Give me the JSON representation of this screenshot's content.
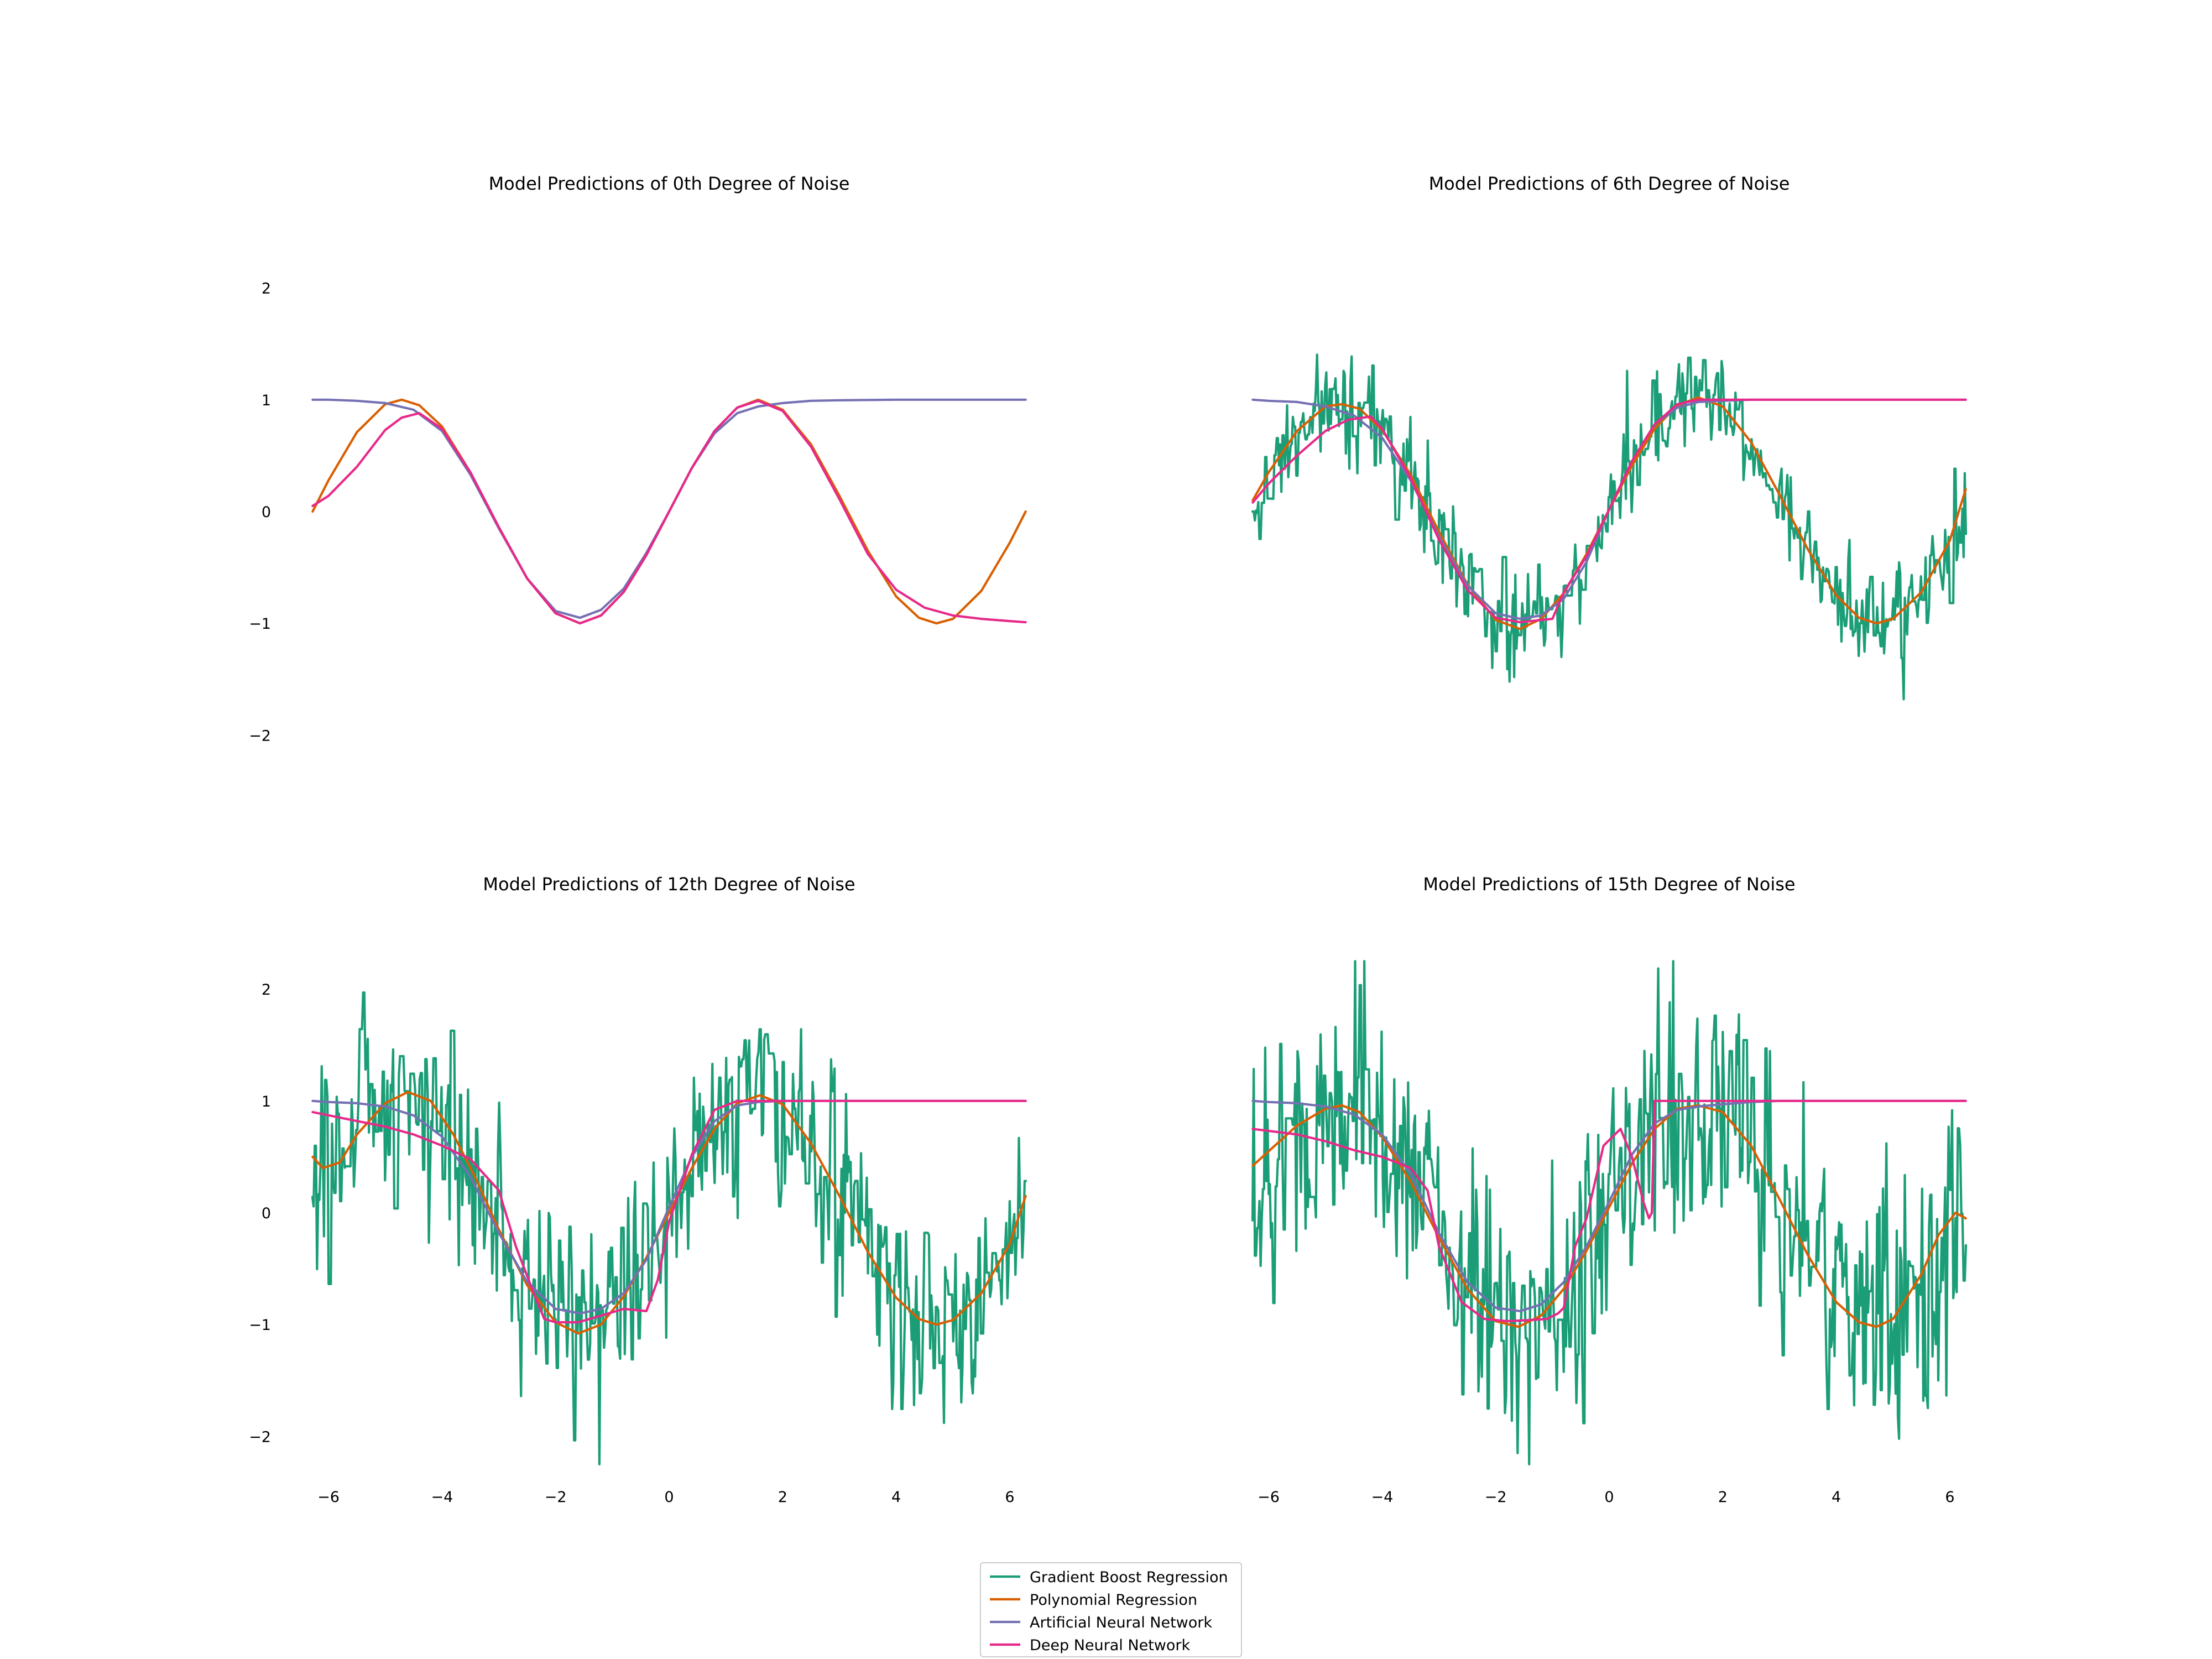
{
  "colors": {
    "gradient_boost": "#1b9e77",
    "polynomial": "#d95f02",
    "ann": "#7570b3",
    "dnn": "#e7298a"
  },
  "legend": {
    "placement": "bottom-center",
    "entries": [
      "Gradient Boost Regression",
      "Polynomial Regression",
      "Artificial Neural Network",
      "Deep Neural Network"
    ]
  },
  "chart_data": [
    {
      "type": "line",
      "title": "Model Predictions of 0th Degree of Noise",
      "noise_degree": 0,
      "xlim": [
        -6.283,
        6.283
      ],
      "ylim": [
        -2.3,
        2.3
      ],
      "yticks": [
        -2,
        -1,
        0,
        1,
        2
      ],
      "xticks": [],
      "show_yticks": true,
      "series": [
        {
          "name": "Polynomial Regression",
          "x": [
            -6.28,
            -6.0,
            -5.5,
            -5.0,
            -4.71,
            -4.4,
            -4.0,
            -3.5,
            -3.0,
            -2.5,
            -2.0,
            -1.57,
            -1.2,
            -0.8,
            -0.4,
            0.0,
            0.4,
            0.8,
            1.2,
            1.57,
            2.0,
            2.5,
            3.0,
            3.5,
            4.0,
            4.4,
            4.71,
            5.0,
            5.5,
            6.0,
            6.28
          ],
          "y": [
            0.0,
            0.28,
            0.71,
            0.96,
            1.0,
            0.95,
            0.76,
            0.35,
            -0.14,
            -0.6,
            -0.91,
            -1.0,
            -0.93,
            -0.72,
            -0.39,
            0.0,
            0.39,
            0.72,
            0.93,
            1.0,
            0.91,
            0.6,
            0.14,
            -0.35,
            -0.76,
            -0.95,
            -1.0,
            -0.96,
            -0.71,
            -0.28,
            0.0
          ]
        },
        {
          "name": "Artificial Neural Network",
          "x": [
            -6.28,
            -6.0,
            -5.5,
            -5.0,
            -4.5,
            -4.0,
            -3.5,
            -3.0,
            -2.5,
            -2.0,
            -1.57,
            -1.2,
            -0.8,
            -0.4,
            0.0,
            0.4,
            0.8,
            1.2,
            1.57,
            2.0,
            2.5,
            3.0,
            4.0,
            5.0,
            6.28
          ],
          "y": [
            1.0,
            1.0,
            0.99,
            0.97,
            0.91,
            0.72,
            0.33,
            -0.15,
            -0.6,
            -0.89,
            -0.95,
            -0.88,
            -0.69,
            -0.37,
            0.0,
            0.39,
            0.7,
            0.88,
            0.94,
            0.97,
            0.99,
            0.995,
            1.0,
            1.0,
            1.0
          ]
        },
        {
          "name": "Deep Neural Network",
          "x": [
            -6.28,
            -6.0,
            -5.5,
            -5.0,
            -4.71,
            -4.4,
            -4.0,
            -3.5,
            -3.0,
            -2.5,
            -2.0,
            -1.57,
            -1.2,
            -0.8,
            -0.4,
            0.0,
            0.4,
            0.8,
            1.2,
            1.57,
            2.0,
            2.5,
            3.0,
            3.5,
            4.0,
            4.5,
            5.0,
            5.5,
            6.0,
            6.28
          ],
          "y": [
            0.05,
            0.14,
            0.4,
            0.73,
            0.84,
            0.88,
            0.74,
            0.35,
            -0.14,
            -0.6,
            -0.91,
            -1.0,
            -0.93,
            -0.72,
            -0.39,
            0.0,
            0.39,
            0.72,
            0.93,
            0.99,
            0.9,
            0.58,
            0.11,
            -0.38,
            -0.7,
            -0.86,
            -0.93,
            -0.96,
            -0.98,
            -0.99
          ]
        }
      ]
    },
    {
      "type": "line",
      "title": "Model Predictions of 6th Degree of Noise",
      "noise_degree": 6,
      "xlim": [
        -6.283,
        6.283
      ],
      "ylim": [
        -2.3,
        2.3
      ],
      "yticks": [],
      "xticks": [],
      "show_yticks": false,
      "series": [
        {
          "name": "Polynomial Regression",
          "x": [
            -6.28,
            -6.0,
            -5.5,
            -5.0,
            -4.71,
            -4.4,
            -4.0,
            -3.5,
            -3.0,
            -2.5,
            -2.0,
            -1.57,
            -1.2,
            -0.8,
            -0.4,
            0.0,
            0.4,
            0.8,
            1.2,
            1.57,
            2.0,
            2.5,
            3.0,
            3.5,
            4.0,
            4.4,
            4.71,
            5.0,
            5.5,
            6.0,
            6.28
          ],
          "y": [
            0.1,
            0.35,
            0.72,
            0.94,
            0.96,
            0.92,
            0.73,
            0.33,
            -0.18,
            -0.65,
            -0.97,
            -1.05,
            -0.96,
            -0.73,
            -0.38,
            0.02,
            0.41,
            0.74,
            0.95,
            1.02,
            0.94,
            0.62,
            0.15,
            -0.34,
            -0.75,
            -0.95,
            -1.0,
            -0.96,
            -0.72,
            -0.26,
            0.2
          ]
        },
        {
          "name": "Artificial Neural Network",
          "x": [
            -6.28,
            -6.0,
            -5.5,
            -5.0,
            -4.5,
            -4.0,
            -3.5,
            -3.0,
            -2.5,
            -2.0,
            -1.57,
            -1.2,
            -0.8,
            -0.4,
            0.0,
            0.4,
            0.8,
            1.2,
            1.57,
            2.0,
            2.5,
            3.0,
            4.0,
            5.0,
            6.28
          ],
          "y": [
            1.0,
            0.99,
            0.98,
            0.94,
            0.86,
            0.66,
            0.28,
            -0.22,
            -0.66,
            -0.91,
            -0.96,
            -0.93,
            -0.78,
            -0.45,
            0.02,
            0.45,
            0.78,
            0.93,
            0.98,
            0.99,
            1.0,
            1.0,
            1.0,
            1.0,
            1.0
          ]
        },
        {
          "name": "Deep Neural Network",
          "x": [
            -6.28,
            -6.0,
            -5.5,
            -5.0,
            -4.6,
            -4.2,
            -4.0,
            -3.5,
            -3.0,
            -2.5,
            -2.0,
            -1.57,
            -1.2,
            -1.0,
            -0.8,
            -0.4,
            0.0,
            0.4,
            0.8,
            1.2,
            1.57,
            2.0,
            2.5,
            3.0,
            4.0,
            5.0,
            6.28
          ],
          "y": [
            0.08,
            0.25,
            0.5,
            0.72,
            0.82,
            0.85,
            0.74,
            0.3,
            -0.25,
            -0.7,
            -0.95,
            -0.99,
            -0.97,
            -0.96,
            -0.72,
            -0.4,
            0.02,
            0.45,
            0.78,
            0.96,
            1.0,
            1.0,
            1.0,
            1.0,
            1.0,
            1.0,
            1.0
          ]
        },
        {
          "name": "Gradient Boost Regression",
          "generated": "noisy_sine",
          "amplitude": 0.22,
          "points": 620
        }
      ]
    },
    {
      "type": "line",
      "title": "Model Predictions of 12th Degree of Noise",
      "noise_degree": 12,
      "xlim": [
        -6.283,
        6.283
      ],
      "ylim": [
        -2.3,
        2.3
      ],
      "yticks": [
        -2,
        -1,
        0,
        1,
        2
      ],
      "xticks": [
        -6,
        -4,
        -2,
        0,
        2,
        4,
        6
      ],
      "show_yticks": true,
      "series": [
        {
          "name": "Polynomial Regression",
          "x": [
            -6.28,
            -6.1,
            -5.8,
            -5.5,
            -5.0,
            -4.6,
            -4.2,
            -3.8,
            -3.4,
            -3.0,
            -2.5,
            -2.0,
            -1.6,
            -1.2,
            -0.8,
            -0.4,
            0.0,
            0.4,
            0.8,
            1.2,
            1.6,
            2.0,
            2.5,
            3.0,
            3.5,
            4.0,
            4.4,
            4.71,
            5.0,
            5.5,
            6.0,
            6.28
          ],
          "y": [
            0.5,
            0.4,
            0.45,
            0.7,
            0.98,
            1.08,
            1.0,
            0.7,
            0.3,
            -0.15,
            -0.65,
            -0.98,
            -1.08,
            -1.0,
            -0.75,
            -0.4,
            0.0,
            0.4,
            0.75,
            0.98,
            1.05,
            0.97,
            0.62,
            0.15,
            -0.35,
            -0.76,
            -0.95,
            -1.0,
            -0.96,
            -0.72,
            -0.28,
            0.15
          ]
        },
        {
          "name": "Artificial Neural Network",
          "x": [
            -6.28,
            -6.0,
            -5.5,
            -5.0,
            -4.5,
            -4.0,
            -3.5,
            -3.0,
            -2.5,
            -2.0,
            -1.57,
            -1.2,
            -0.8,
            -0.4,
            0.0,
            0.4,
            0.8,
            1.2,
            1.57,
            2.0,
            2.5,
            3.0,
            4.0,
            5.0,
            6.28
          ],
          "y": [
            1.0,
            0.99,
            0.98,
            0.95,
            0.87,
            0.68,
            0.32,
            -0.18,
            -0.62,
            -0.86,
            -0.9,
            -0.86,
            -0.72,
            -0.42,
            0.05,
            0.5,
            0.82,
            0.96,
            0.99,
            1.0,
            1.0,
            1.0,
            1.0,
            1.0,
            1.0
          ]
        },
        {
          "name": "Deep Neural Network",
          "x": [
            -6.28,
            -5.5,
            -5.0,
            -4.5,
            -4.0,
            -3.5,
            -3.0,
            -2.7,
            -2.4,
            -2.2,
            -2.0,
            -1.6,
            -1.2,
            -0.8,
            -0.4,
            -0.2,
            0.0,
            0.4,
            0.8,
            1.2,
            1.6,
            2.0,
            2.5,
            3.0,
            4.0,
            5.0,
            6.28
          ],
          "y": [
            0.9,
            0.82,
            0.77,
            0.7,
            0.6,
            0.48,
            0.2,
            -0.3,
            -0.7,
            -0.95,
            -0.98,
            -0.98,
            -0.92,
            -0.86,
            -0.88,
            -0.6,
            -0.08,
            0.52,
            0.92,
            1.0,
            1.0,
            1.0,
            1.0,
            1.0,
            1.0,
            1.0,
            1.0
          ]
        },
        {
          "name": "Gradient Boost Regression",
          "generated": "noisy_sine",
          "amplitude": 0.45,
          "points": 620
        }
      ]
    },
    {
      "type": "line",
      "title": "Model Predictions of 15th Degree of Noise",
      "noise_degree": 15,
      "xlim": [
        -6.283,
        6.283
      ],
      "ylim": [
        -2.3,
        2.3
      ],
      "yticks": [],
      "xticks": [
        -6,
        -4,
        -2,
        0,
        2,
        4,
        6
      ],
      "show_yticks": false,
      "series": [
        {
          "name": "Polynomial Regression",
          "x": [
            -6.28,
            -6.0,
            -5.5,
            -5.0,
            -4.71,
            -4.4,
            -4.0,
            -3.5,
            -3.0,
            -2.5,
            -2.0,
            -1.6,
            -1.2,
            -0.8,
            -0.4,
            0.0,
            0.4,
            0.8,
            1.2,
            1.57,
            2.0,
            2.5,
            3.0,
            3.5,
            4.0,
            4.4,
            4.71,
            5.0,
            5.5,
            5.8,
            6.1,
            6.28
          ],
          "y": [
            0.42,
            0.55,
            0.78,
            0.93,
            0.96,
            0.9,
            0.68,
            0.28,
            -0.22,
            -0.68,
            -0.97,
            -1.02,
            -0.92,
            -0.68,
            -0.34,
            0.05,
            0.44,
            0.75,
            0.93,
            0.96,
            0.9,
            0.6,
            0.12,
            -0.38,
            -0.8,
            -0.98,
            -1.02,
            -0.95,
            -0.55,
            -0.2,
            0.0,
            -0.05
          ]
        },
        {
          "name": "Artificial Neural Network",
          "x": [
            -6.28,
            -6.0,
            -5.5,
            -5.0,
            -4.5,
            -4.0,
            -3.5,
            -3.0,
            -2.5,
            -2.0,
            -1.57,
            -1.2,
            -0.8,
            -0.4,
            0.0,
            0.4,
            0.8,
            1.2,
            1.57,
            2.0,
            2.5,
            3.0,
            4.0,
            5.0,
            6.28
          ],
          "y": [
            1.0,
            0.99,
            0.98,
            0.95,
            0.88,
            0.7,
            0.35,
            -0.18,
            -0.62,
            -0.85,
            -0.88,
            -0.82,
            -0.62,
            -0.3,
            0.1,
            0.52,
            0.8,
            0.92,
            0.95,
            0.97,
            0.99,
            1.0,
            1.0,
            1.0,
            1.0
          ]
        },
        {
          "name": "Deep Neural Network",
          "x": [
            -6.28,
            -5.5,
            -5.0,
            -4.5,
            -4.0,
            -3.5,
            -3.2,
            -3.0,
            -2.6,
            -2.2,
            -1.8,
            -1.4,
            -1.1,
            -0.9,
            -0.8,
            -0.6,
            -0.4,
            -0.1,
            0.2,
            0.4,
            0.6,
            0.7,
            0.75,
            0.8,
            1.0,
            2.0,
            3.0,
            4.0,
            6.28
          ],
          "y": [
            0.75,
            0.7,
            0.64,
            0.56,
            0.5,
            0.4,
            0.2,
            -0.3,
            -0.8,
            -0.95,
            -0.97,
            -0.96,
            -0.95,
            -0.9,
            -0.85,
            -0.3,
            -0.05,
            0.6,
            0.75,
            0.5,
            0.1,
            -0.05,
            0.0,
            1.0,
            1.0,
            1.0,
            1.0,
            1.0,
            1.0
          ]
        },
        {
          "name": "Gradient Boost Regression",
          "generated": "noisy_sine",
          "amplitude": 0.55,
          "points": 620
        }
      ]
    }
  ]
}
